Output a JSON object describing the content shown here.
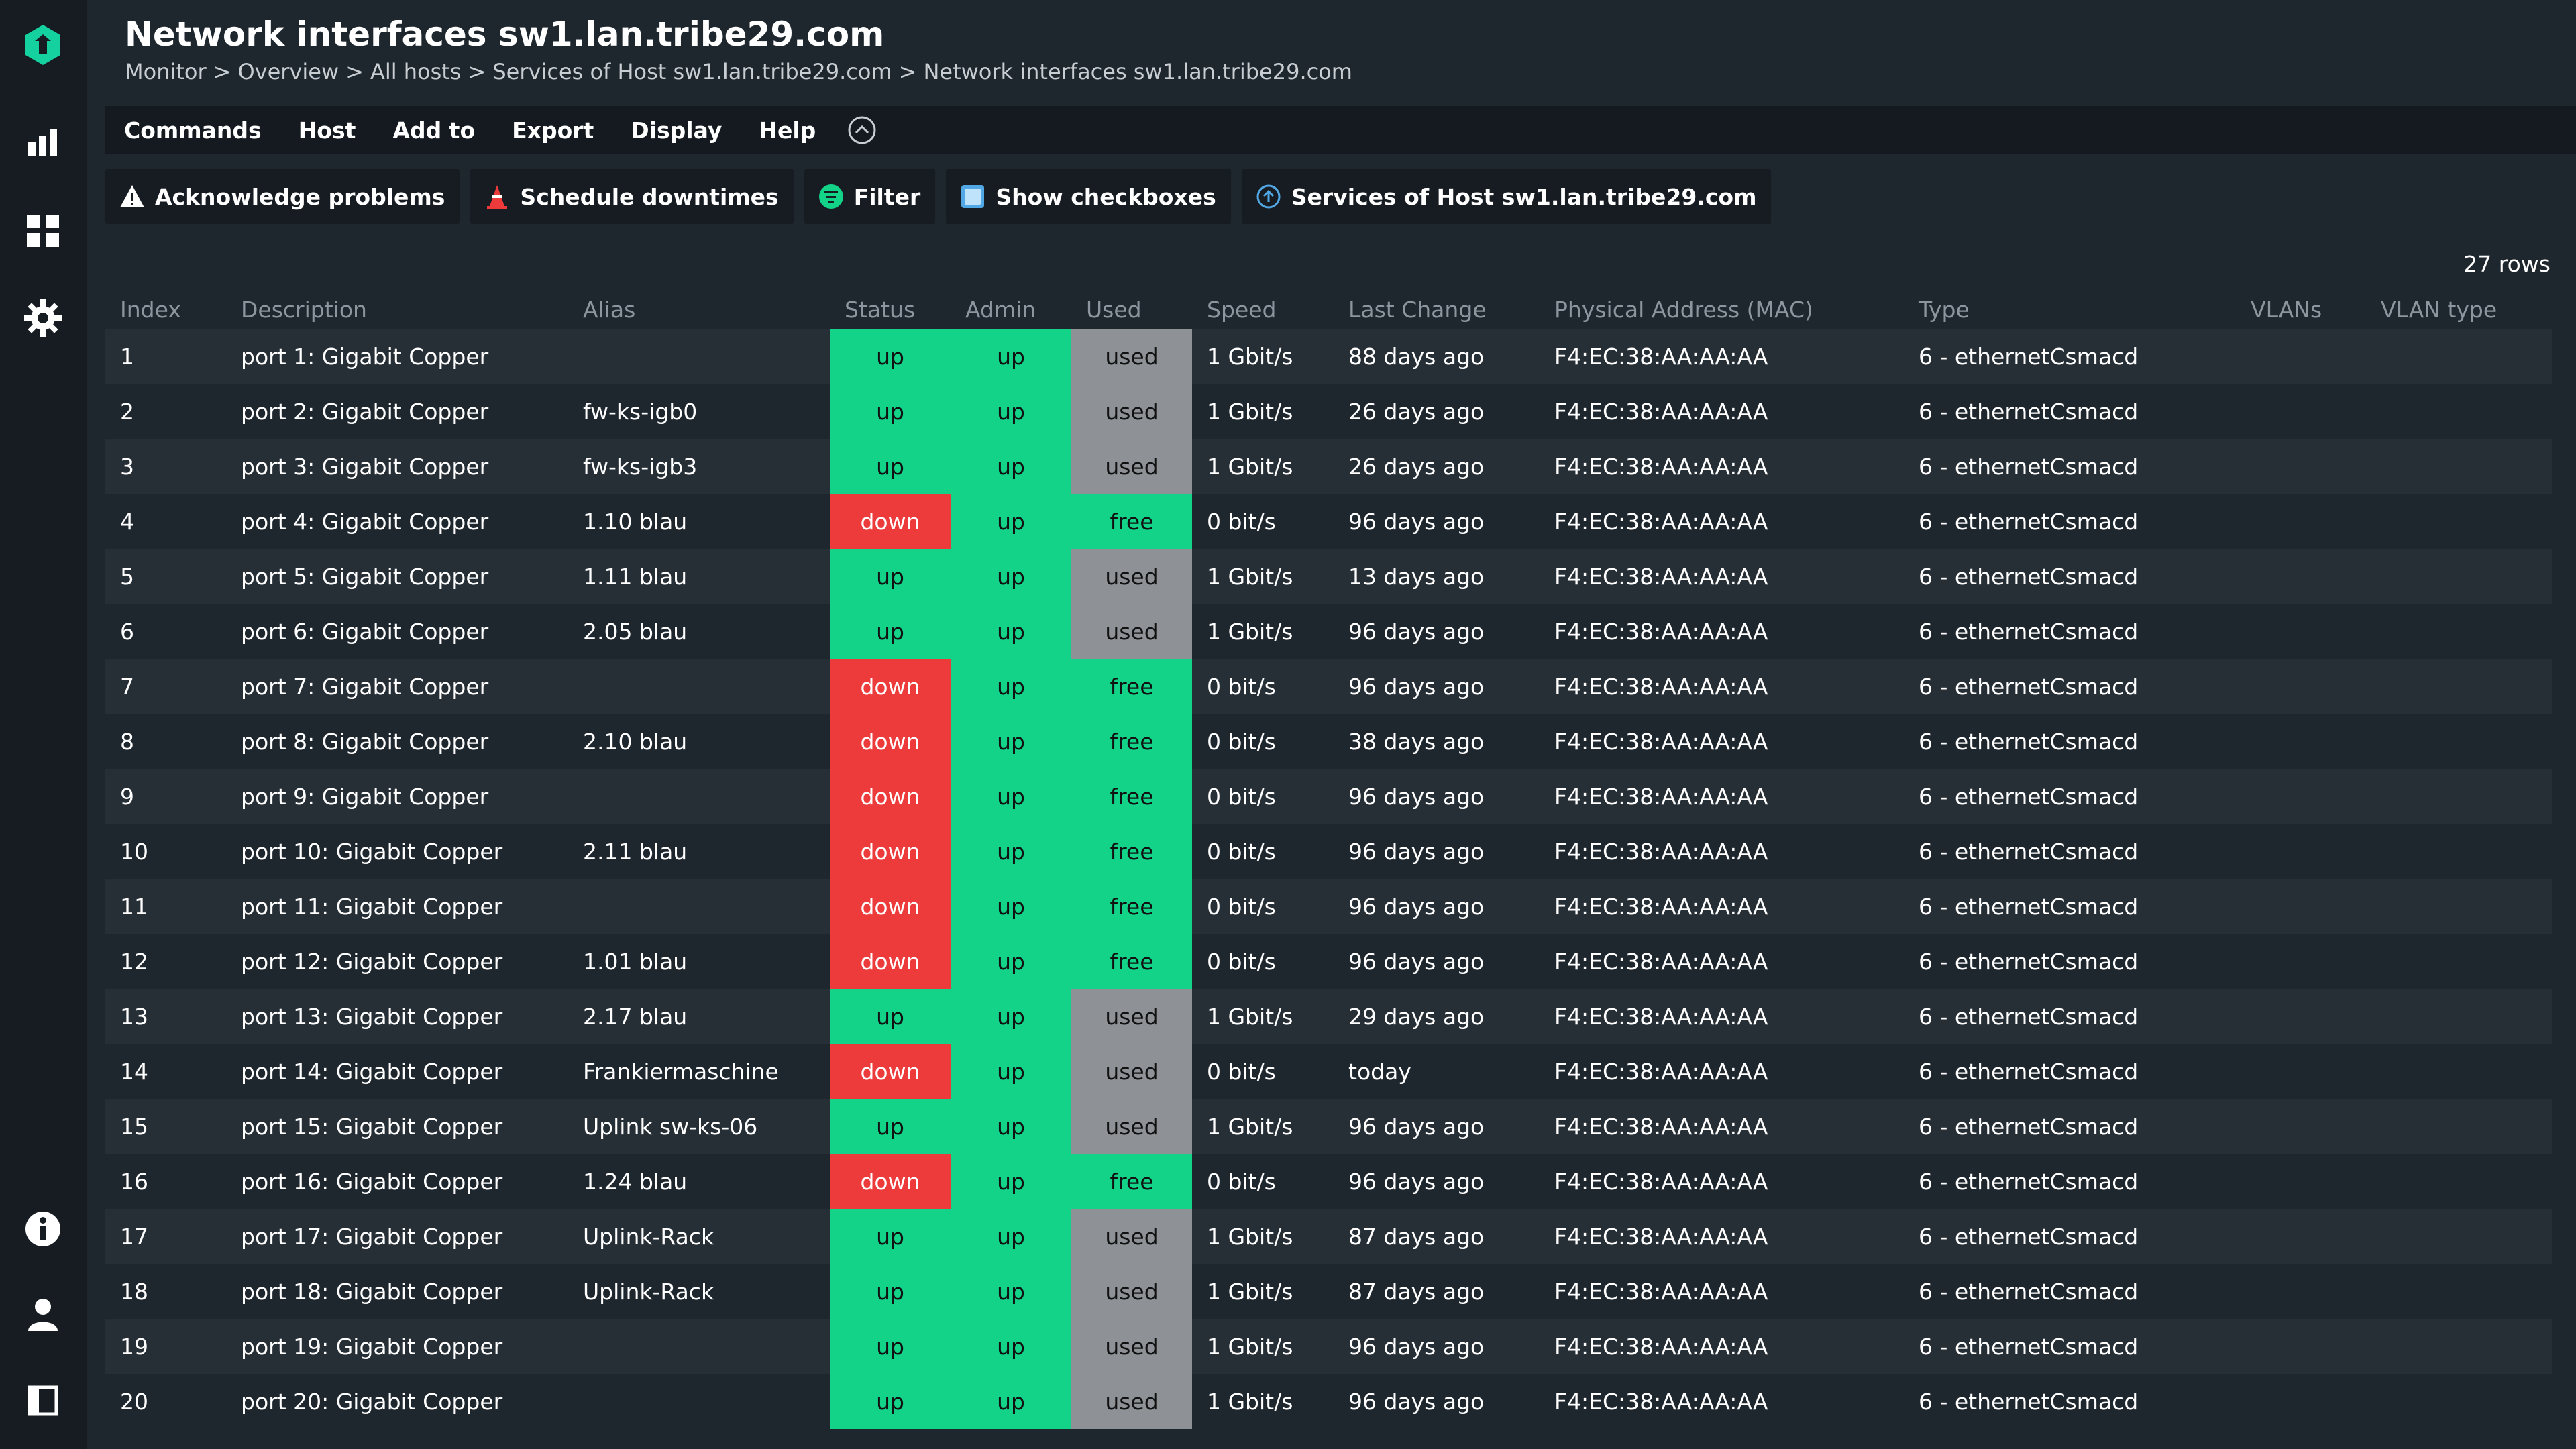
{
  "header": {
    "title": "Network interfaces sw1.lan.tribe29.com",
    "breadcrumb": [
      "Monitor",
      "Overview",
      "All hosts",
      "Services of Host sw1.lan.tribe29.com",
      "Network interfaces sw1.lan.tribe29.com"
    ]
  },
  "menu": [
    "Commands",
    "Host",
    "Add to",
    "Export",
    "Display",
    "Help"
  ],
  "actions": {
    "acknowledge": "Acknowledge problems",
    "downtimes": "Schedule downtimes",
    "filter": "Filter",
    "checkboxes": "Show checkboxes",
    "services": "Services of Host sw1.lan.tribe29.com"
  },
  "row_count": "27 rows",
  "colors": {
    "up": "#13d389",
    "down": "#ed3b3b",
    "used": "#8e9296",
    "accent": "#13d389"
  },
  "table": {
    "columns": [
      "Index",
      "Description",
      "Alias",
      "Status",
      "Admin",
      "Used",
      "Speed",
      "Last Change",
      "Physical Address (MAC)",
      "Type",
      "VLANs",
      "VLAN type"
    ],
    "rows": [
      {
        "index": "1",
        "description": "port 1: Gigabit Copper",
        "alias": "",
        "status": "up",
        "admin": "up",
        "used": "used",
        "speed": "1 Gbit/s",
        "last_change": "88 days ago",
        "mac": "F4:EC:38:AA:AA:AA",
        "type": "6 - ethernetCsmacd",
        "vlans": "",
        "vlan_type": ""
      },
      {
        "index": "2",
        "description": "port 2: Gigabit Copper",
        "alias": "fw-ks-igb0",
        "status": "up",
        "admin": "up",
        "used": "used",
        "speed": "1 Gbit/s",
        "last_change": "26 days ago",
        "mac": "F4:EC:38:AA:AA:AA",
        "type": "6 - ethernetCsmacd",
        "vlans": "",
        "vlan_type": ""
      },
      {
        "index": "3",
        "description": "port 3: Gigabit Copper",
        "alias": "fw-ks-igb3",
        "status": "up",
        "admin": "up",
        "used": "used",
        "speed": "1 Gbit/s",
        "last_change": "26 days ago",
        "mac": "F4:EC:38:AA:AA:AA",
        "type": "6 - ethernetCsmacd",
        "vlans": "",
        "vlan_type": ""
      },
      {
        "index": "4",
        "description": "port 4: Gigabit Copper",
        "alias": "1.10 blau",
        "status": "down",
        "admin": "up",
        "used": "free",
        "speed": "0 bit/s",
        "last_change": "96 days ago",
        "mac": "F4:EC:38:AA:AA:AA",
        "type": "6 - ethernetCsmacd",
        "vlans": "",
        "vlan_type": ""
      },
      {
        "index": "5",
        "description": "port 5: Gigabit Copper",
        "alias": "1.11 blau",
        "status": "up",
        "admin": "up",
        "used": "used",
        "speed": "1 Gbit/s",
        "last_change": "13 days ago",
        "mac": "F4:EC:38:AA:AA:AA",
        "type": "6 - ethernetCsmacd",
        "vlans": "",
        "vlan_type": ""
      },
      {
        "index": "6",
        "description": "port 6: Gigabit Copper",
        "alias": "2.05 blau",
        "status": "up",
        "admin": "up",
        "used": "used",
        "speed": "1 Gbit/s",
        "last_change": "96 days ago",
        "mac": "F4:EC:38:AA:AA:AA",
        "type": "6 - ethernetCsmacd",
        "vlans": "",
        "vlan_type": ""
      },
      {
        "index": "7",
        "description": "port 7: Gigabit Copper",
        "alias": "",
        "status": "down",
        "admin": "up",
        "used": "free",
        "speed": "0 bit/s",
        "last_change": "96 days ago",
        "mac": "F4:EC:38:AA:AA:AA",
        "type": "6 - ethernetCsmacd",
        "vlans": "",
        "vlan_type": ""
      },
      {
        "index": "8",
        "description": "port 8: Gigabit Copper",
        "alias": "2.10 blau",
        "status": "down",
        "admin": "up",
        "used": "free",
        "speed": "0 bit/s",
        "last_change": "38 days ago",
        "mac": "F4:EC:38:AA:AA:AA",
        "type": "6 - ethernetCsmacd",
        "vlans": "",
        "vlan_type": ""
      },
      {
        "index": "9",
        "description": "port 9: Gigabit Copper",
        "alias": "",
        "status": "down",
        "admin": "up",
        "used": "free",
        "speed": "0 bit/s",
        "last_change": "96 days ago",
        "mac": "F4:EC:38:AA:AA:AA",
        "type": "6 - ethernetCsmacd",
        "vlans": "",
        "vlan_type": ""
      },
      {
        "index": "10",
        "description": "port 10: Gigabit Copper",
        "alias": "2.11 blau",
        "status": "down",
        "admin": "up",
        "used": "free",
        "speed": "0 bit/s",
        "last_change": "96 days ago",
        "mac": "F4:EC:38:AA:AA:AA",
        "type": "6 - ethernetCsmacd",
        "vlans": "",
        "vlan_type": ""
      },
      {
        "index": "11",
        "description": "port 11: Gigabit Copper",
        "alias": "",
        "status": "down",
        "admin": "up",
        "used": "free",
        "speed": "0 bit/s",
        "last_change": "96 days ago",
        "mac": "F4:EC:38:AA:AA:AA",
        "type": "6 - ethernetCsmacd",
        "vlans": "",
        "vlan_type": ""
      },
      {
        "index": "12",
        "description": "port 12: Gigabit Copper",
        "alias": "1.01 blau",
        "status": "down",
        "admin": "up",
        "used": "free",
        "speed": "0 bit/s",
        "last_change": "96 days ago",
        "mac": "F4:EC:38:AA:AA:AA",
        "type": "6 - ethernetCsmacd",
        "vlans": "",
        "vlan_type": ""
      },
      {
        "index": "13",
        "description": "port 13: Gigabit Copper",
        "alias": "2.17 blau",
        "status": "up",
        "admin": "up",
        "used": "used",
        "speed": "1 Gbit/s",
        "last_change": "29 days ago",
        "mac": "F4:EC:38:AA:AA:AA",
        "type": "6 - ethernetCsmacd",
        "vlans": "",
        "vlan_type": ""
      },
      {
        "index": "14",
        "description": "port 14: Gigabit Copper",
        "alias": "Frankiermaschine",
        "status": "down",
        "admin": "up",
        "used": "used",
        "speed": "0 bit/s",
        "last_change": "today",
        "mac": "F4:EC:38:AA:AA:AA",
        "type": "6 - ethernetCsmacd",
        "vlans": "",
        "vlan_type": ""
      },
      {
        "index": "15",
        "description": "port 15: Gigabit Copper",
        "alias": "Uplink sw-ks-06",
        "status": "up",
        "admin": "up",
        "used": "used",
        "speed": "1 Gbit/s",
        "last_change": "96 days ago",
        "mac": "F4:EC:38:AA:AA:AA",
        "type": "6 - ethernetCsmacd",
        "vlans": "",
        "vlan_type": ""
      },
      {
        "index": "16",
        "description": "port 16: Gigabit Copper",
        "alias": "1.24 blau",
        "status": "down",
        "admin": "up",
        "used": "free",
        "speed": "0 bit/s",
        "last_change": "96 days ago",
        "mac": "F4:EC:38:AA:AA:AA",
        "type": "6 - ethernetCsmacd",
        "vlans": "",
        "vlan_type": ""
      },
      {
        "index": "17",
        "description": "port 17: Gigabit Copper",
        "alias": "Uplink-Rack",
        "status": "up",
        "admin": "up",
        "used": "used",
        "speed": "1 Gbit/s",
        "last_change": "87 days ago",
        "mac": "F4:EC:38:AA:AA:AA",
        "type": "6 - ethernetCsmacd",
        "vlans": "",
        "vlan_type": ""
      },
      {
        "index": "18",
        "description": "port 18: Gigabit Copper",
        "alias": "Uplink-Rack",
        "status": "up",
        "admin": "up",
        "used": "used",
        "speed": "1 Gbit/s",
        "last_change": "87 days ago",
        "mac": "F4:EC:38:AA:AA:AA",
        "type": "6 - ethernetCsmacd",
        "vlans": "",
        "vlan_type": ""
      },
      {
        "index": "19",
        "description": "port 19: Gigabit Copper",
        "alias": "",
        "status": "up",
        "admin": "up",
        "used": "used",
        "speed": "1 Gbit/s",
        "last_change": "96 days ago",
        "mac": "F4:EC:38:AA:AA:AA",
        "type": "6 - ethernetCsmacd",
        "vlans": "",
        "vlan_type": ""
      },
      {
        "index": "20",
        "description": "port 20: Gigabit Copper",
        "alias": "",
        "status": "up",
        "admin": "up",
        "used": "used",
        "speed": "1 Gbit/s",
        "last_change": "96 days ago",
        "mac": "F4:EC:38:AA:AA:AA",
        "type": "6 - ethernetCsmacd",
        "vlans": "",
        "vlan_type": ""
      }
    ]
  }
}
